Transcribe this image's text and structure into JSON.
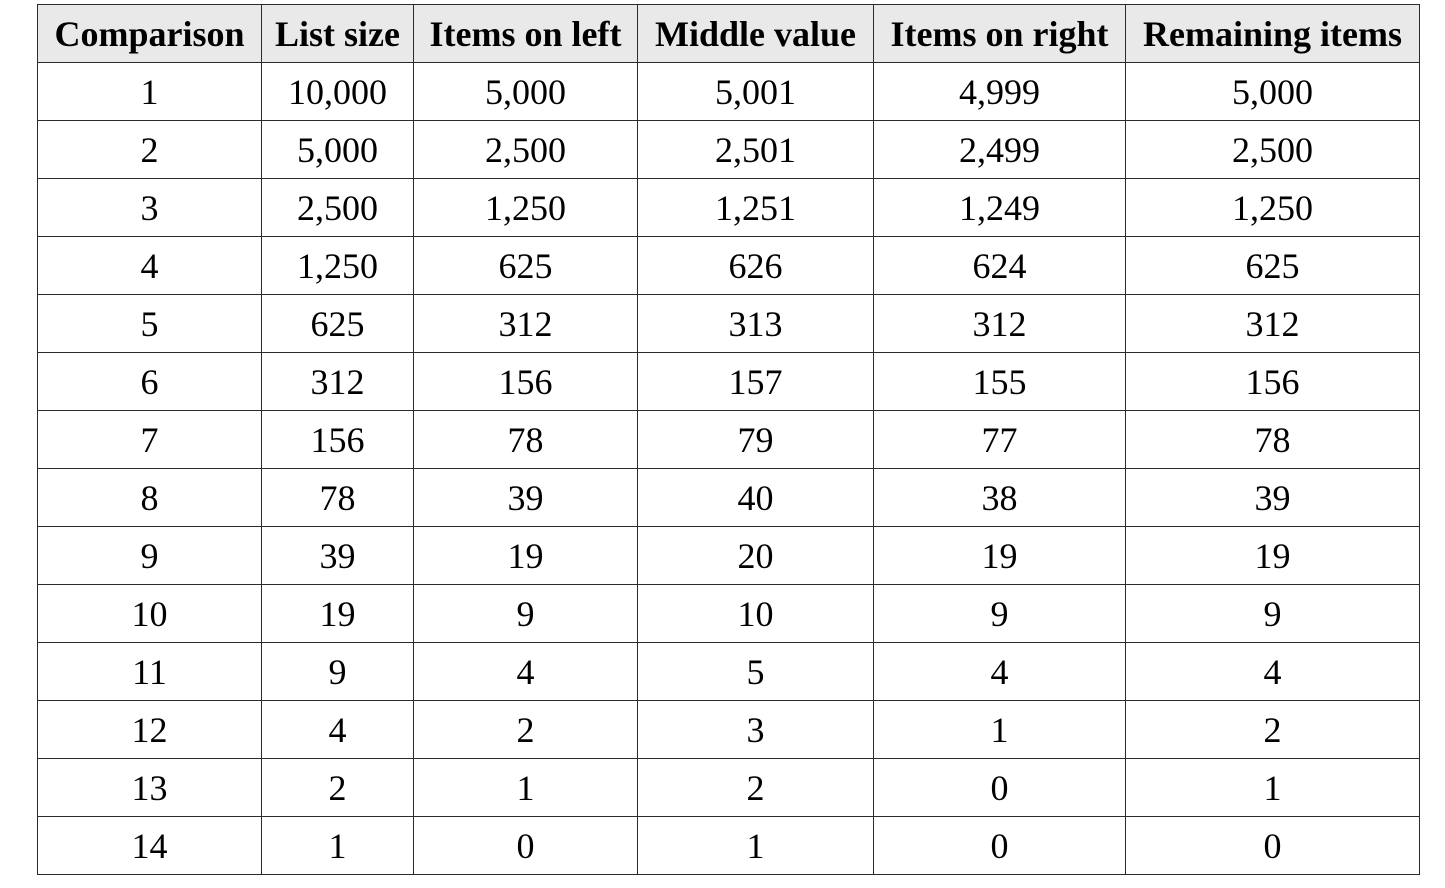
{
  "table": {
    "columns": [
      "Comparison",
      "List size",
      "Items on left",
      "Middle value",
      "Items on right",
      "Remaining items"
    ],
    "rows": [
      [
        "1",
        "10,000",
        "5,000",
        "5,001",
        "4,999",
        "5,000"
      ],
      [
        "2",
        "5,000",
        "2,500",
        "2,501",
        "2,499",
        "2,500"
      ],
      [
        "3",
        "2,500",
        "1,250",
        "1,251",
        "1,249",
        "1,250"
      ],
      [
        "4",
        "1,250",
        "625",
        "626",
        "624",
        "625"
      ],
      [
        "5",
        "625",
        "312",
        "313",
        "312",
        "312"
      ],
      [
        "6",
        "312",
        "156",
        "157",
        "155",
        "156"
      ],
      [
        "7",
        "156",
        "78",
        "79",
        "77",
        "78"
      ],
      [
        "8",
        "78",
        "39",
        "40",
        "38",
        "39"
      ],
      [
        "9",
        "39",
        "19",
        "20",
        "19",
        "19"
      ],
      [
        "10",
        "19",
        "9",
        "10",
        "9",
        "9"
      ],
      [
        "11",
        "9",
        "4",
        "5",
        "4",
        "4"
      ],
      [
        "12",
        "4",
        "2",
        "3",
        "1",
        "2"
      ],
      [
        "13",
        "2",
        "1",
        "2",
        "0",
        "1"
      ],
      [
        "14",
        "1",
        "0",
        "1",
        "0",
        "0"
      ]
    ]
  },
  "colors": {
    "header_background": "#e9e9e9",
    "border": "#2b2b2b",
    "text": "#000000"
  }
}
